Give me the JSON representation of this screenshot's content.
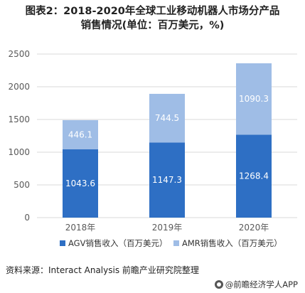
{
  "title_line1": "图表2：2018-2020年全球工业移动机器人市场分产品",
  "title_line2": "销售情况(单位：百万美元，%)",
  "source": "资料来源：Interact Analysis 前瞻产业研究院整理",
  "brand": "@前瞻经济学人APP",
  "colors": {
    "agv": "#2e6fc4",
    "amr": "#9fbde6",
    "axis": "#d9d9d9",
    "label": "#ffffff"
  },
  "chart_data": {
    "type": "bar",
    "stacked": true,
    "categories": [
      "2018年",
      "2019年",
      "2020年"
    ],
    "series": [
      {
        "name": "AGV销售收入（百万美元）",
        "values": [
          1043.6,
          1147.3,
          1268.4
        ]
      },
      {
        "name": "AMR销售收入（百万美元）",
        "values": [
          446.1,
          744.5,
          1090.3
        ]
      }
    ],
    "value_labels": [
      [
        "1043.6",
        "1147.3",
        "1268.4"
      ],
      [
        "446.1",
        "744.5",
        "1090.3"
      ]
    ],
    "ylim": [
      0,
      2500
    ],
    "yticks": [
      "0",
      "500",
      "1000",
      "1500",
      "2000",
      "2500"
    ],
    "grid": true,
    "legend": "bottom"
  }
}
